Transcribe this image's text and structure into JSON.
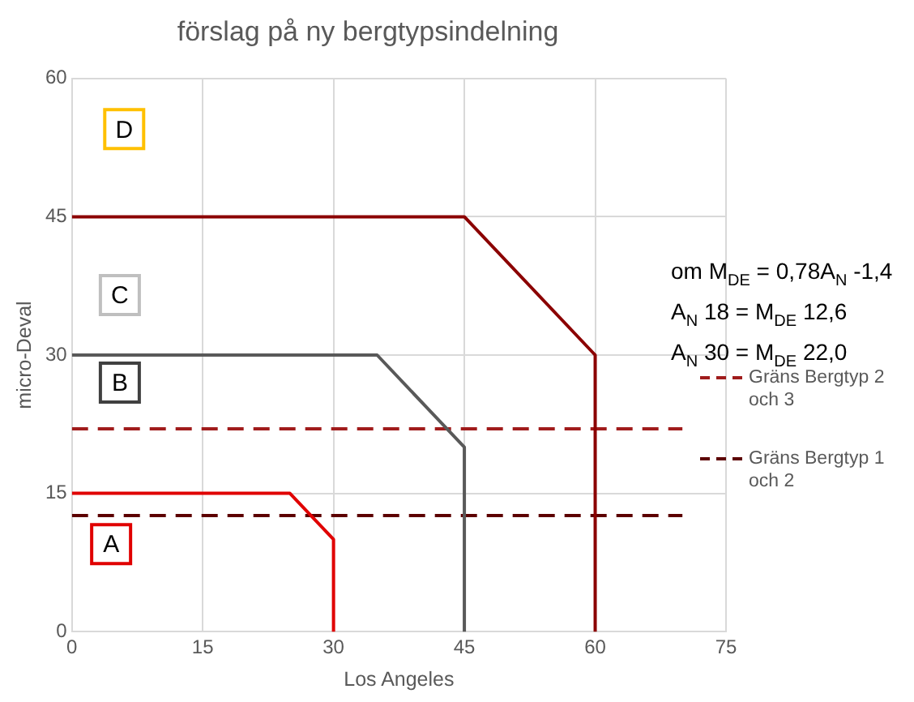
{
  "chart_data": {
    "type": "line",
    "title": "förslag på ny bergtypsindelning",
    "xlabel": "Los Angeles",
    "ylabel": "micro-Deval",
    "xlim": [
      0,
      75
    ],
    "xticks": [
      0,
      15,
      30,
      45,
      60,
      75
    ],
    "ylim": [
      0,
      60
    ],
    "yticks": [
      0,
      15,
      30,
      45,
      60
    ],
    "grid": true,
    "legend": "right",
    "marker": "none",
    "series": [
      {
        "color": "#e00000",
        "x": [
          0,
          25,
          30,
          30
        ],
        "values": [
          15,
          15,
          10,
          0
        ],
        "line_style": "solid"
      },
      {
        "color": "#595959",
        "x": [
          0,
          35,
          45,
          45
        ],
        "values": [
          30,
          30,
          20,
          0
        ],
        "line_style": "solid"
      },
      {
        "color": "#8b0000",
        "x": [
          0,
          45,
          60,
          60
        ],
        "values": [
          45,
          45,
          30,
          0
        ],
        "line_style": "solid"
      },
      {
        "name": "Gräns Bergtyp 2 och 3",
        "color": "#a01c1c",
        "x": [
          0,
          70
        ],
        "values": [
          22,
          22
        ],
        "line_style": "dashed"
      },
      {
        "name": "Gräns Bergtyp 1 och 2",
        "color": "#5c0000",
        "x": [
          0,
          70
        ],
        "values": [
          12.6,
          12.6
        ],
        "line_style": "dashed"
      }
    ],
    "annotations": [
      {
        "text": "A",
        "x": 4.5,
        "y": 9.5
      },
      {
        "text": "B",
        "x": 5.5,
        "y": 27
      },
      {
        "text": "C",
        "x": 5.5,
        "y": 36.5
      },
      {
        "text": "D",
        "x": 6,
        "y": 54.5
      },
      "om M$_{DE}$ = 0,78A$_{N}$ -1,4",
      "A$_{N}$ 18 = M$_{DE}$ 12,6",
      "A$_{N}$ 30 = M$_{DE}$ 22,0"
    ]
  }
}
